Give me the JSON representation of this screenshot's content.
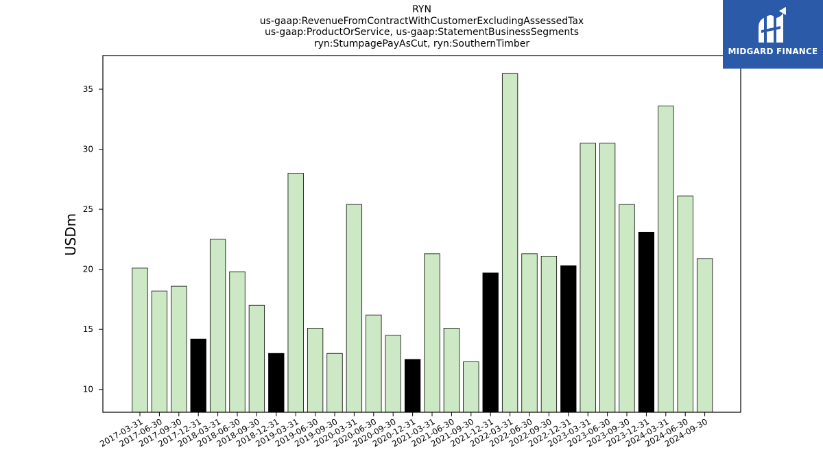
{
  "chart_data": {
    "type": "bar",
    "title_lines": [
      "RYN",
      "us-gaap:RevenueFromContractWithCustomerExcludingAssessedTax",
      "us-gaap:ProductOrService, us-gaap:StatementBusinessSegments",
      "ryn:StumpagePayAsCut, ryn:SouthernTimber"
    ],
    "ylabel": "USDm",
    "xlabel": "",
    "ylim": [
      8.1,
      37.8
    ],
    "yticks": [
      10,
      15,
      20,
      25,
      30,
      35
    ],
    "categories": [
      "2017-03-31",
      "2017-06-30",
      "2017-09-30",
      "2017-12-31",
      "2018-03-31",
      "2018-06-30",
      "2018-09-30",
      "2018-12-31",
      "2019-03-31",
      "2019-06-30",
      "2019-09-30",
      "2020-03-31",
      "2020-06-30",
      "2020-09-30",
      "2020-12-31",
      "2021-03-31",
      "2021-06-30",
      "2021-09-30",
      "2021-12-31",
      "2022-03-31",
      "2022-06-30",
      "2022-09-30",
      "2022-12-31",
      "2023-03-31",
      "2023-06-30",
      "2023-09-30",
      "2023-12-31",
      "2024-03-31",
      "2024-06-30",
      "2024-09-30"
    ],
    "values": [
      20.1,
      18.2,
      18.6,
      14.2,
      22.5,
      19.8,
      17.0,
      13.0,
      28.0,
      15.1,
      13.0,
      25.4,
      16.2,
      14.5,
      12.5,
      21.3,
      15.1,
      12.3,
      19.7,
      36.3,
      21.3,
      21.1,
      20.3,
      30.5,
      30.5,
      25.4,
      23.1,
      33.6,
      26.1,
      20.9
    ],
    "highlight": [
      false,
      false,
      false,
      true,
      false,
      false,
      false,
      true,
      false,
      false,
      false,
      false,
      false,
      false,
      true,
      false,
      false,
      false,
      true,
      false,
      false,
      false,
      true,
      false,
      false,
      false,
      true,
      false,
      false,
      false
    ],
    "colors": {
      "bar": "#cce8c4",
      "highlight": "#000000",
      "edge": "#000000"
    },
    "grid": false
  },
  "logo": {
    "text": "MIDGARD FINANCE",
    "icon": "midgard-logo-icon",
    "background": "#2a5aa8"
  }
}
